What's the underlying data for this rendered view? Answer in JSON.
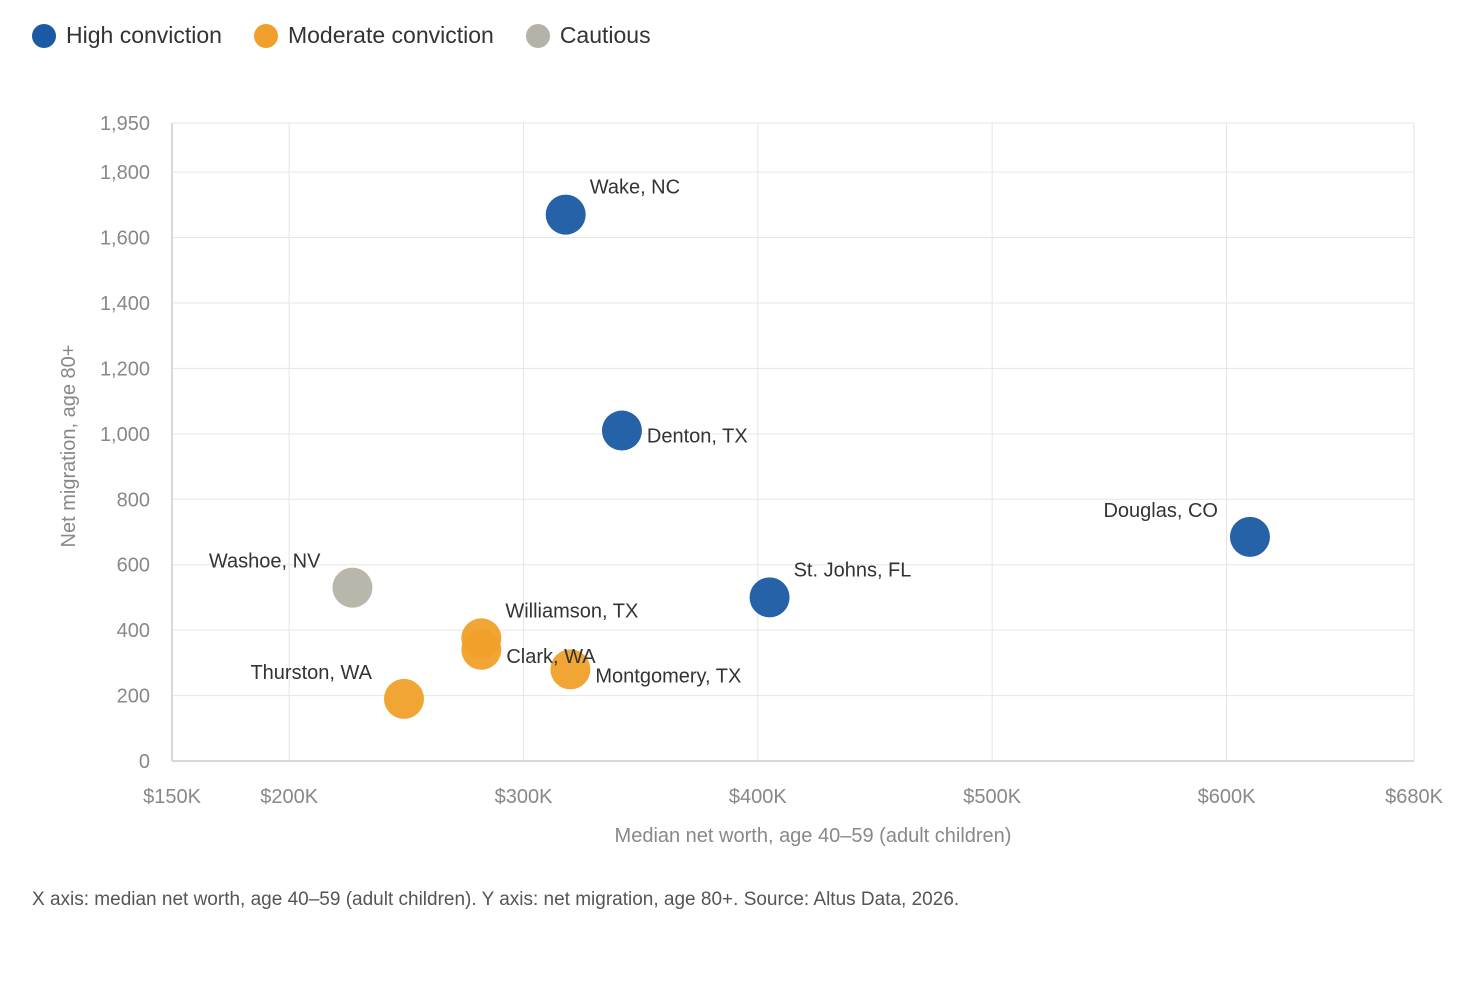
{
  "legend": {
    "items": [
      {
        "label": "High conviction",
        "color": "#1a5aa3"
      },
      {
        "label": "Moderate conviction",
        "color": "#f0a02a"
      },
      {
        "label": "Cautious",
        "color": "#b5b2a8"
      }
    ]
  },
  "caption": "X axis: median net worth, age 40–59 (adult children). Y axis: net migration, age 80+. Source: Altus Data, 2026.",
  "chart_data": {
    "type": "scatter",
    "xlabel": "Median net worth, age 40–59 (adult children)",
    "ylabel": "Net migration, age 80+",
    "xlim": [
      150000,
      680000
    ],
    "ylim": [
      0,
      1950
    ],
    "x_ticks": [
      {
        "value": 150000,
        "label": "$150K"
      },
      {
        "value": 200000,
        "label": "$200K"
      },
      {
        "value": 300000,
        "label": "$300K"
      },
      {
        "value": 400000,
        "label": "$400K"
      },
      {
        "value": 500000,
        "label": "$500K"
      },
      {
        "value": 600000,
        "label": "$600K"
      },
      {
        "value": 680000,
        "label": "$680K"
      }
    ],
    "y_ticks": [
      {
        "value": 0,
        "label": "0"
      },
      {
        "value": 200,
        "label": "200"
      },
      {
        "value": 400,
        "label": "400"
      },
      {
        "value": 600,
        "label": "600"
      },
      {
        "value": 800,
        "label": "800"
      },
      {
        "value": 1000,
        "label": "1,000"
      },
      {
        "value": 1200,
        "label": "1,200"
      },
      {
        "value": 1400,
        "label": "1,400"
      },
      {
        "value": 1600,
        "label": "1,600"
      },
      {
        "value": 1800,
        "label": "1,800"
      },
      {
        "value": 1950,
        "label": "1,950"
      }
    ],
    "grid": true,
    "series": [
      {
        "name": "High conviction",
        "color": "#1a5aa3",
        "points": [
          {
            "label": "Wake, NC",
            "x": 318000,
            "y": 1670,
            "label_pos": "above-right"
          },
          {
            "label": "Denton, TX",
            "x": 342000,
            "y": 1010,
            "label_pos": "right"
          },
          {
            "label": "St. Johns, FL",
            "x": 405000,
            "y": 500,
            "label_pos": "above-right"
          },
          {
            "label": "Douglas, CO",
            "x": 610000,
            "y": 685,
            "label_pos": "above-left"
          }
        ]
      },
      {
        "name": "Moderate conviction",
        "color": "#f0a02a",
        "points": [
          {
            "label": "Williamson, TX",
            "x": 282000,
            "y": 375,
            "label_pos": "above-right"
          },
          {
            "label": "Clark, WA",
            "x": 282000,
            "y": 340,
            "label_pos": "right-low"
          },
          {
            "label": "Montgomery, TX",
            "x": 320000,
            "y": 280,
            "label_pos": "right-low"
          },
          {
            "label": "Thurston, WA",
            "x": 249000,
            "y": 190,
            "label_pos": "above-left"
          }
        ]
      },
      {
        "name": "Cautious",
        "color": "#b5b2a8",
        "points": [
          {
            "label": "Washoe, NV",
            "x": 227000,
            "y": 530,
            "label_pos": "above-left"
          }
        ]
      }
    ]
  }
}
